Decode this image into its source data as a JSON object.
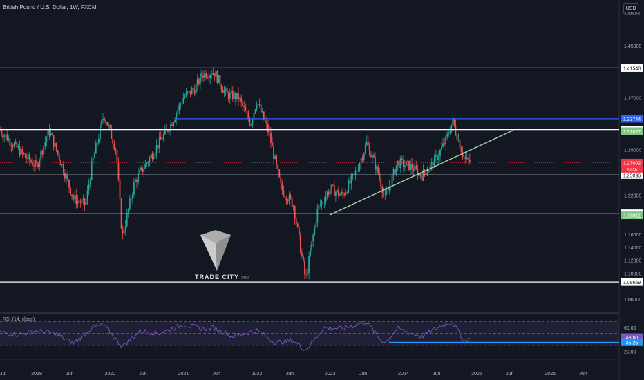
{
  "header": {
    "title": "British Pound / U.S. Dollar, 1W, FXCM",
    "currency": "USD"
  },
  "watermark": {
    "brand": "TRADE CITY",
    "sub": "PRO"
  },
  "chart_data": {
    "type": "candlestick",
    "title": "British Pound / U.S. Dollar, 1W, FXCM",
    "price_axis": {
      "ylim": [
        1.04,
        1.52
      ],
      "ticks": [
        1.5,
        1.45,
        1.37,
        1.29,
        1.22,
        1.16,
        1.14,
        1.12,
        1.1,
        1.06
      ],
      "tick_labels": [
        "1.50000",
        "1.45000",
        "1.37000",
        "1.29000",
        "1.22000",
        "1.16000",
        "1.14000",
        "1.12000",
        "1.10000",
        "1.06000"
      ]
    },
    "time_axis": {
      "labels": [
        "Jul",
        "2019",
        "Jun",
        "2020",
        "Jun",
        "2021",
        "Jun",
        "2022",
        "Jun",
        "2023",
        "Jun",
        "2024",
        "Jun",
        "2025",
        "Jun",
        "2026",
        "Jun"
      ]
    },
    "ohlc_path": [
      [
        "2018-07",
        1.32
      ],
      [
        "2018-09",
        1.3
      ],
      [
        "2018-11",
        1.28
      ],
      [
        "2019-01",
        1.265
      ],
      [
        "2019-03",
        1.32
      ],
      [
        "2019-05",
        1.27
      ],
      [
        "2019-07",
        1.215
      ],
      [
        "2019-09",
        1.205
      ],
      [
        "2019-10",
        1.265
      ],
      [
        "2019-12",
        1.345
      ],
      [
        "2020-02",
        1.29
      ],
      [
        "2020-03",
        1.155
      ],
      [
        "2020-05",
        1.24
      ],
      [
        "2020-07",
        1.27
      ],
      [
        "2020-09",
        1.3
      ],
      [
        "2020-11",
        1.33
      ],
      [
        "2021-01",
        1.37
      ],
      [
        "2021-03",
        1.385
      ],
      [
        "2021-04",
        1.405
      ],
      [
        "2021-06",
        1.41
      ],
      [
        "2021-08",
        1.375
      ],
      [
        "2021-10",
        1.37
      ],
      [
        "2021-12",
        1.33
      ],
      [
        "2022-01",
        1.365
      ],
      [
        "2022-03",
        1.315
      ],
      [
        "2022-05",
        1.23
      ],
      [
        "2022-07",
        1.205
      ],
      [
        "2022-09",
        1.09
      ],
      [
        "2022-11",
        1.2
      ],
      [
        "2023-01",
        1.23
      ],
      [
        "2023-03",
        1.22
      ],
      [
        "2023-05",
        1.25
      ],
      [
        "2023-07",
        1.3
      ],
      [
        "2023-09",
        1.25
      ],
      [
        "2023-10",
        1.215
      ],
      [
        "2023-12",
        1.27
      ],
      [
        "2024-02",
        1.265
      ],
      [
        "2024-04",
        1.25
      ],
      [
        "2024-06",
        1.27
      ],
      [
        "2024-08",
        1.305
      ],
      [
        "2024-09",
        1.335
      ],
      [
        "2024-11",
        1.275
      ],
      [
        "2024-12",
        1.27
      ]
    ],
    "horizontal_levels": [
      {
        "value": 1.41548,
        "label": "1.41548",
        "color": "#ffffff"
      },
      {
        "value": 1.33744,
        "label": "1.33744",
        "color": "#2962ff"
      },
      {
        "value": 1.32073,
        "label": "1.32073",
        "color": "#ffffff"
      },
      {
        "value": 1.25096,
        "label": "1.25096",
        "color": "#ffffff"
      },
      {
        "value": 1.19225,
        "label": "1.19225",
        "color": "#ffffff"
      },
      {
        "value": 1.08659,
        "label": "1.08659",
        "color": "#ffffff"
      }
    ],
    "price_tags": [
      {
        "value": 1.31827,
        "label": "1.31827",
        "color": "#81c784"
      },
      {
        "value": 1.18911,
        "label": "1.18911",
        "color": "#81c784"
      },
      {
        "value": 1.27002,
        "label": "1.27002",
        "sub": "2d 3h",
        "color": "#f23645"
      }
    ],
    "trendline": {
      "from": [
        "2023-01",
        1.19
      ],
      "to": [
        "2025-07",
        1.32
      ],
      "color": "#a5d6a7"
    },
    "rsi": {
      "title": "RSI (14, close)",
      "upper": 70,
      "lower": 30,
      "tick_labels": [
        "60.00",
        "20.00"
      ],
      "tick_values": [
        60,
        20
      ],
      "current": {
        "value": 43.8,
        "label": "43.80",
        "color": "#7e57c2"
      },
      "support": {
        "value": 35.25,
        "label": "35.25",
        "color": "#2196f3"
      },
      "path": [
        [
          "2018-07",
          52
        ],
        [
          "2018-10",
          48
        ],
        [
          "2019-01",
          55
        ],
        [
          "2019-04",
          50
        ],
        [
          "2019-07",
          33
        ],
        [
          "2019-10",
          60
        ],
        [
          "2019-12",
          64
        ],
        [
          "2020-03",
          28
        ],
        [
          "2020-06",
          55
        ],
        [
          "2020-09",
          50
        ],
        [
          "2021-01",
          65
        ],
        [
          "2021-04",
          58
        ],
        [
          "2021-06",
          60
        ],
        [
          "2021-09",
          45
        ],
        [
          "2022-01",
          55
        ],
        [
          "2022-04",
          35
        ],
        [
          "2022-07",
          38
        ],
        [
          "2022-09",
          22
        ],
        [
          "2022-12",
          60
        ],
        [
          "2023-03",
          58
        ],
        [
          "2023-07",
          70
        ],
        [
          "2023-09",
          42
        ],
        [
          "2023-10",
          35
        ],
        [
          "2023-12",
          58
        ],
        [
          "2024-04",
          45
        ],
        [
          "2024-07",
          62
        ],
        [
          "2024-09",
          70
        ],
        [
          "2024-11",
          36
        ],
        [
          "2024-12",
          43.8
        ]
      ]
    }
  }
}
